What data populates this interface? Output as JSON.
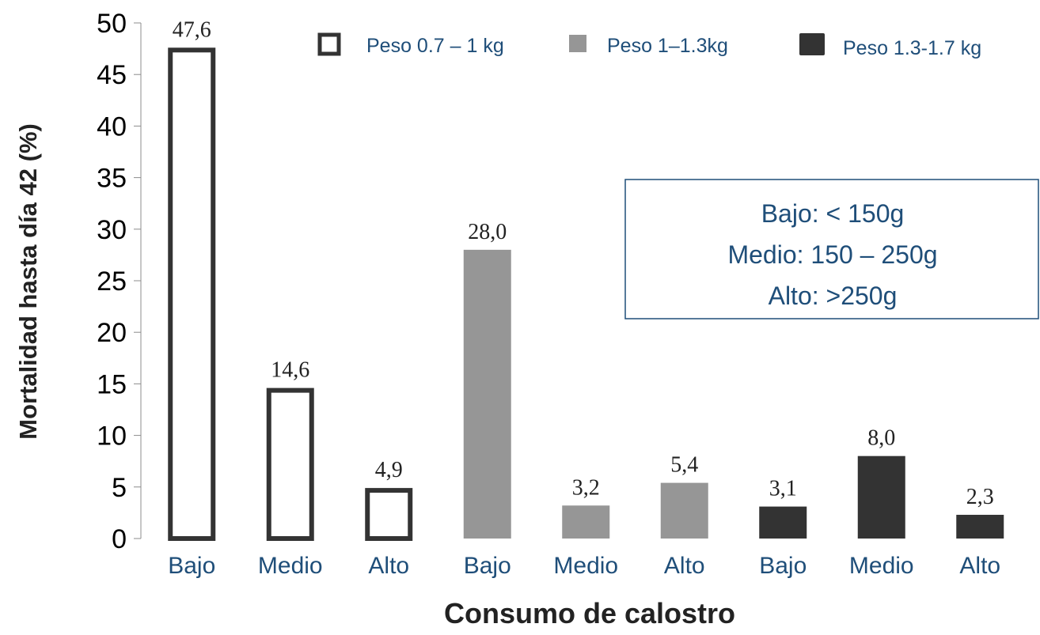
{
  "chart_data": {
    "type": "bar",
    "xlabel": "Consumo de calostro",
    "ylabel": "Mortalidad hasta día 42 (%)",
    "ylim": [
      0,
      50
    ],
    "yticks": [
      "0",
      "5",
      "10",
      "15",
      "20",
      "25",
      "30",
      "35",
      "40",
      "45",
      "50"
    ],
    "categories": [
      "Bajo",
      "Medio",
      "Alto",
      "Bajo",
      "Medio",
      "Alto",
      "Bajo",
      "Medio",
      "Alto"
    ],
    "series": [
      {
        "name": "Peso 0.7 – 1 kg",
        "style": "outline",
        "color": "#333333",
        "positions": [
          0,
          1,
          2
        ],
        "values": [
          47.6,
          14.6,
          4.9
        ],
        "labels": [
          "47,6",
          "14,6",
          "4,9"
        ]
      },
      {
        "name": "Peso 1–1.3kg",
        "style": "fill",
        "color": "#969696",
        "positions": [
          3,
          4,
          5
        ],
        "values": [
          28.0,
          3.2,
          5.4
        ],
        "labels": [
          "28,0",
          "3,2",
          "5,4"
        ]
      },
      {
        "name": "Peso 1.3-1.7 kg",
        "style": "fill",
        "color": "#333333",
        "positions": [
          6,
          7,
          8
        ],
        "values": [
          3.1,
          8.0,
          2.3
        ],
        "labels": [
          "3,1",
          "8,0",
          "2,3"
        ]
      }
    ],
    "annotation": [
      "Bajo: < 150g",
      "Medio: 150 – 250g",
      "Alto: >250g"
    ],
    "legend_position": "top-right",
    "grid": false
  }
}
